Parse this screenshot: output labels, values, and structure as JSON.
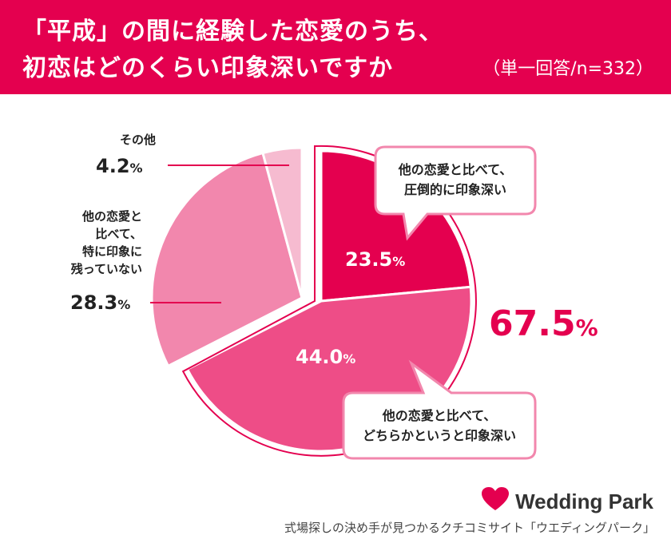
{
  "header": {
    "title_line1": "「平成」の間に経験した恋愛のうち、",
    "title_line2": "初恋はどのくらい印象深いですか",
    "note": "（単一回答/n=332）",
    "bg_color": "#e4004f"
  },
  "chart_data": {
    "type": "pie",
    "unit": "%",
    "slices": [
      {
        "label": "他の恋愛と比べて、圧倒的に印象深い",
        "value": 23.5,
        "color": "#e4004f"
      },
      {
        "label": "他の恋愛と比べて、どちらかというと印象深い",
        "value": 44.0,
        "color": "#ee4d87"
      },
      {
        "label": "他の恋愛と比べて、特に印象に残っていない",
        "value": 28.3,
        "color": "#f287ad"
      },
      {
        "label": "その他",
        "value": 4.2,
        "color": "#f6bbd0"
      }
    ],
    "combined_total": {
      "value": 67.5,
      "color": "#e4004f"
    }
  },
  "labels": {
    "value1": "23.5",
    "value2": "44.0",
    "value3": "28.3",
    "value4": "4.2",
    "pct": "%",
    "total": "67.5",
    "callout1_line1": "他の恋愛と比べて、",
    "callout1_line2": "圧倒的に印象深い",
    "callout2_line1": "他の恋愛と比べて、",
    "callout2_line2": "どちらかというと印象深い",
    "cat3_line1": "他の恋愛と",
    "cat3_line2": "比べて、",
    "cat3_line3": "特に印象に",
    "cat3_line4": "残っていない",
    "cat4": "その他"
  },
  "footer": {
    "brand": "Wedding Park",
    "tagline": "式場探しの決め手が見つかるクチコミサイト「ウエディングパーク」",
    "icon": "heart-icon"
  }
}
